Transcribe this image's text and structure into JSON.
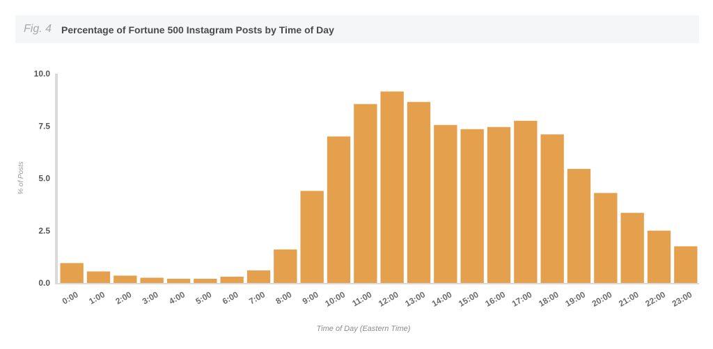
{
  "header": {
    "fig_label": "Fig. 4",
    "title": "Percentage of Fortune 500 Instagram Posts by Time of Day"
  },
  "colors": {
    "bar": "#e4a04c",
    "header_band": "#f5f6f7",
    "axis": "#d9d9d9"
  },
  "chart_data": {
    "type": "bar",
    "title": "Percentage of Fortune 500 Instagram Posts by Time of Day",
    "xlabel": "Time of Day (Eastern Time)",
    "ylabel": "% of Posts",
    "ylim": [
      0,
      10
    ],
    "yticks": [
      "0.0",
      "2.5",
      "5.0",
      "7.5",
      "10.0"
    ],
    "ytick_values": [
      0,
      2.5,
      5,
      7.5,
      10
    ],
    "grid": false,
    "categories": [
      "0:00",
      "1:00",
      "2:00",
      "3:00",
      "4:00",
      "5:00",
      "6:00",
      "7:00",
      "8:00",
      "9:00",
      "10:00",
      "11:00",
      "12:00",
      "13:00",
      "14:00",
      "15:00",
      "16:00",
      "17:00",
      "18:00",
      "19:00",
      "20:00",
      "21:00",
      "22:00",
      "23:00"
    ],
    "values": [
      0.95,
      0.55,
      0.35,
      0.25,
      0.2,
      0.2,
      0.3,
      0.6,
      1.6,
      4.4,
      7.0,
      8.55,
      9.15,
      8.65,
      7.55,
      7.35,
      7.45,
      7.75,
      7.1,
      5.45,
      4.3,
      3.35,
      2.5,
      1.75
    ]
  }
}
